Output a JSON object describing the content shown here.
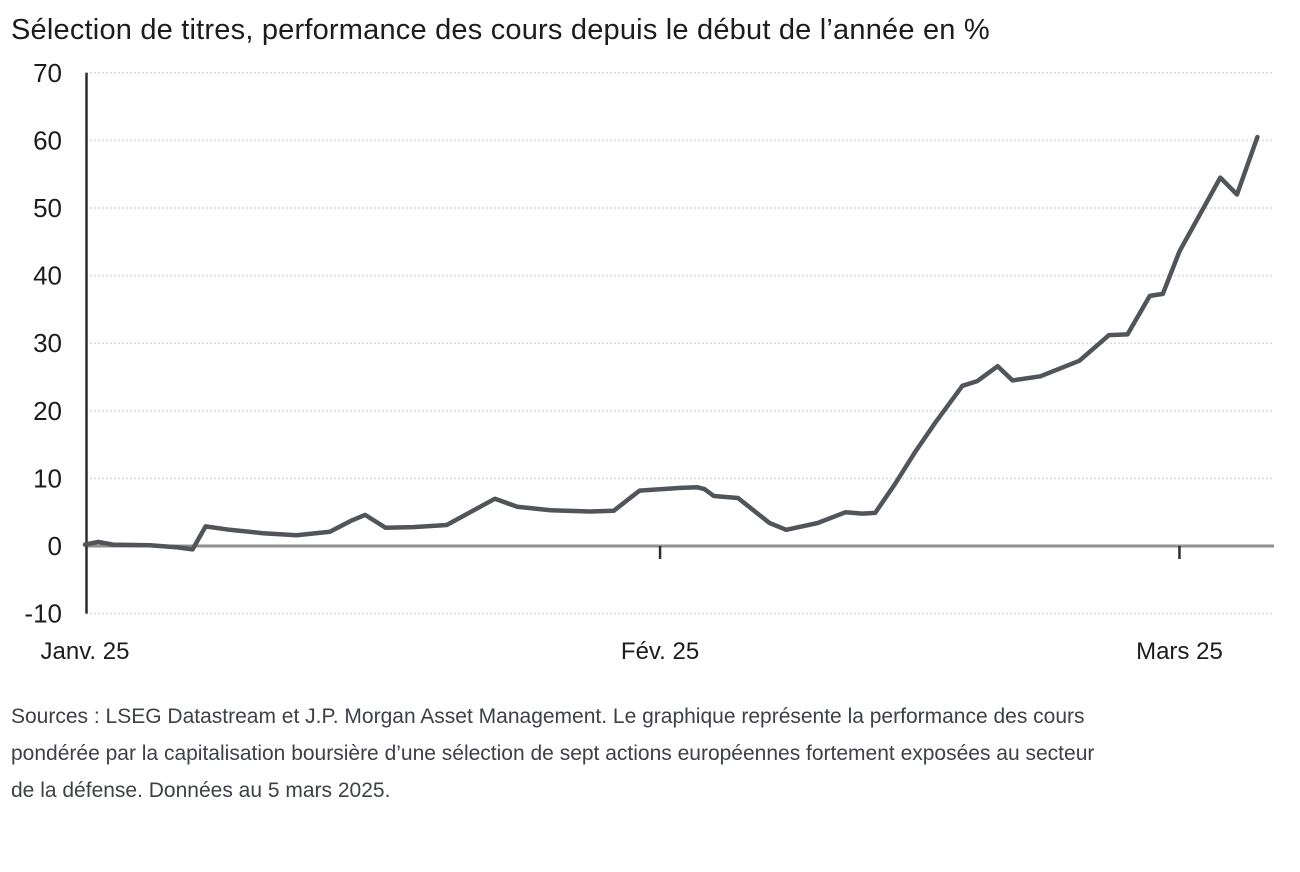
{
  "chart_data": {
    "type": "line",
    "title": "Sélection de titres, performance des cours depuis le début de l’année en %",
    "xlabel": "",
    "ylabel": "",
    "ylim": [
      -10,
      70
    ],
    "xlim_days": [
      0,
      64.1
    ],
    "x_unit": "jours depuis le 1 janv. 2025",
    "grid": "horizontal-only",
    "legend": "none",
    "y_ticks": [
      70,
      60,
      50,
      40,
      30,
      20,
      10,
      0,
      -10
    ],
    "x_ticks": [
      {
        "label": "Janv. 25",
        "day": 0
      },
      {
        "label": "Fév. 25",
        "day": 31
      },
      {
        "label": "Mars 25",
        "day": 59
      }
    ],
    "series": [
      {
        "name": "Sélection de sept actions européennes exposées au secteur de la défense (pondérée par la capitalisation boursière)",
        "points_day_value": [
          [
            0,
            0.2
          ],
          [
            0.7,
            0.6
          ],
          [
            1.5,
            0.2
          ],
          [
            3.5,
            0.1
          ],
          [
            5,
            -0.2
          ],
          [
            5.8,
            -0.5
          ],
          [
            6.5,
            2.9
          ],
          [
            7.8,
            2.4
          ],
          [
            9.6,
            1.9
          ],
          [
            11.4,
            1.6
          ],
          [
            13.2,
            2.1
          ],
          [
            14.4,
            3.8
          ],
          [
            15.1,
            4.6
          ],
          [
            16.2,
            2.7
          ],
          [
            17.7,
            2.8
          ],
          [
            19.5,
            3.1
          ],
          [
            22.1,
            7.0
          ],
          [
            23.3,
            5.8
          ],
          [
            25.1,
            5.3
          ],
          [
            27.2,
            5.1
          ],
          [
            28.5,
            5.2
          ],
          [
            29.9,
            8.2
          ],
          [
            31,
            8.4
          ],
          [
            32.1,
            8.6
          ],
          [
            33,
            8.7
          ],
          [
            33.4,
            8.4
          ],
          [
            33.9,
            7.4
          ],
          [
            35.2,
            7.1
          ],
          [
            36.9,
            3.4
          ],
          [
            37.8,
            2.4
          ],
          [
            39.5,
            3.4
          ],
          [
            41,
            5.0
          ],
          [
            41.9,
            4.8
          ],
          [
            42.6,
            4.9
          ],
          [
            43.7,
            9.3
          ],
          [
            44.7,
            13.7
          ],
          [
            45.8,
            18.1
          ],
          [
            47.3,
            23.7
          ],
          [
            48.1,
            24.4
          ],
          [
            49.2,
            26.6
          ],
          [
            50,
            24.5
          ],
          [
            51.5,
            25.1
          ],
          [
            53.6,
            27.4
          ],
          [
            54.7,
            30.0
          ],
          [
            55.2,
            31.2
          ],
          [
            56.2,
            31.3
          ],
          [
            57.4,
            37.0
          ],
          [
            58.1,
            37.3
          ],
          [
            59,
            43.6
          ],
          [
            61.2,
            54.5
          ],
          [
            62.1,
            52.0
          ],
          [
            63.2,
            60.5
          ]
        ]
      }
    ],
    "colors": {
      "line": "#515559",
      "grid": "#e0e0e0",
      "zero_line": "#8f8f8f",
      "axis": "#2d2d2d",
      "text": "#1c1c1c",
      "background": "#ffffff"
    }
  },
  "footer": {
    "lines": [
      "Sources : LSEG Datastream et J.P. Morgan Asset Management. Le graphique représente la performance des cours",
      "pondérée par la capitalisation boursière d’une sélection de sept actions européennes fortement exposées au secteur",
      "de la défense. Données au 5 mars 2025."
    ]
  }
}
